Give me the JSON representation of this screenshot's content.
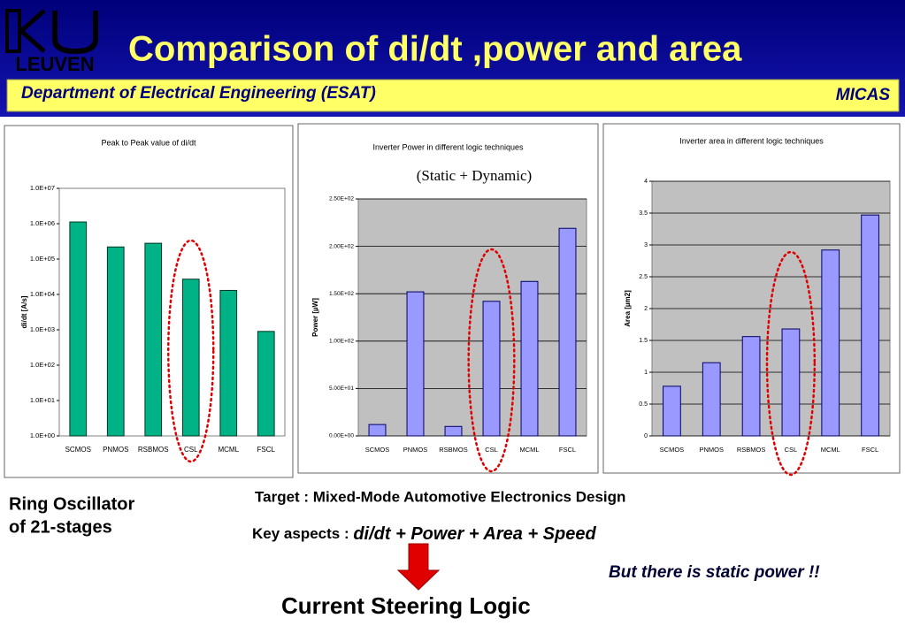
{
  "header": {
    "logo_text": "LEUVEN",
    "title": "Comparison of di/dt ,power and area",
    "department": "Department of Electrical Engineering (ESAT)",
    "group": "MICAS"
  },
  "chart_data": [
    {
      "type": "bar",
      "title": "Peak to Peak value of di/dt",
      "y_label": "di/dt [A/s]",
      "log_y": true,
      "color": "#00b386",
      "categories": [
        "SCMOS",
        "PNMOS",
        "RSBMOS",
        "CSL",
        "MCML",
        "FSCL"
      ],
      "values": [
        1120000,
        220000,
        280000,
        27000,
        13000,
        900
      ],
      "ylim": [
        1,
        10000000
      ],
      "yticks": [
        {
          "value": 1,
          "label": "1.0E+00"
        },
        {
          "value": 10,
          "label": "1.0E+01"
        },
        {
          "value": 100,
          "label": "1.0E+02"
        },
        {
          "value": 1000,
          "label": "1.0E+03"
        },
        {
          "value": 10000,
          "label": "1.0E+04"
        },
        {
          "value": 100000,
          "label": "1.0E+05"
        },
        {
          "value": 1000000,
          "label": "1.0E+06"
        },
        {
          "value": 10000000,
          "label": "1.0E+07"
        }
      ],
      "grid": false
    },
    {
      "type": "bar",
      "title": "Inverter Power in different logic techniques",
      "subtitle": "(Static + Dynamic)",
      "y_label": "Power [µW]",
      "log_y": false,
      "color": "#9999ff",
      "categories": [
        "SCMOS",
        "PNMOS",
        "RSBMOS",
        "CSL",
        "MCML",
        "FSCL"
      ],
      "values": [
        12,
        152,
        10,
        142,
        163,
        219
      ],
      "ylim": [
        0,
        250
      ],
      "yticks": [
        {
          "value": 0,
          "label": "0.00E+00"
        },
        {
          "value": 50,
          "label": "5.00E+01"
        },
        {
          "value": 100,
          "label": "1.00E+02"
        },
        {
          "value": 150,
          "label": "1.50E+02"
        },
        {
          "value": 200,
          "label": "2.00E+02"
        },
        {
          "value": 250,
          "label": "2.50E+02"
        }
      ],
      "grid": true
    },
    {
      "type": "bar",
      "title": "Inverter area in different logic techniques",
      "y_label": "Area [µm2]",
      "log_y": false,
      "color": "#9999ff",
      "categories": [
        "SCMOS",
        "PNMOS",
        "RSBMOS",
        "CSL",
        "MCML",
        "FSCL"
      ],
      "values": [
        0.78,
        1.15,
        1.56,
        1.68,
        2.92,
        3.47
      ],
      "ylim": [
        0,
        4
      ],
      "yticks": [
        0,
        0.5,
        1,
        1.5,
        2,
        2.5,
        3,
        3.5,
        4
      ],
      "grid": true
    }
  ],
  "notes": {
    "ring_oscillator": [
      "Ring Oscillator",
      "of 21-stages"
    ],
    "target": "Target  : Mixed-Mode Automotive Electronics Design",
    "key_aspects_label": "Key aspects  : ",
    "key_aspects": "di/dt + Power + Area + Speed",
    "static_power": "But there is  static power !!",
    "conclusion": "Current Steering Logic"
  }
}
